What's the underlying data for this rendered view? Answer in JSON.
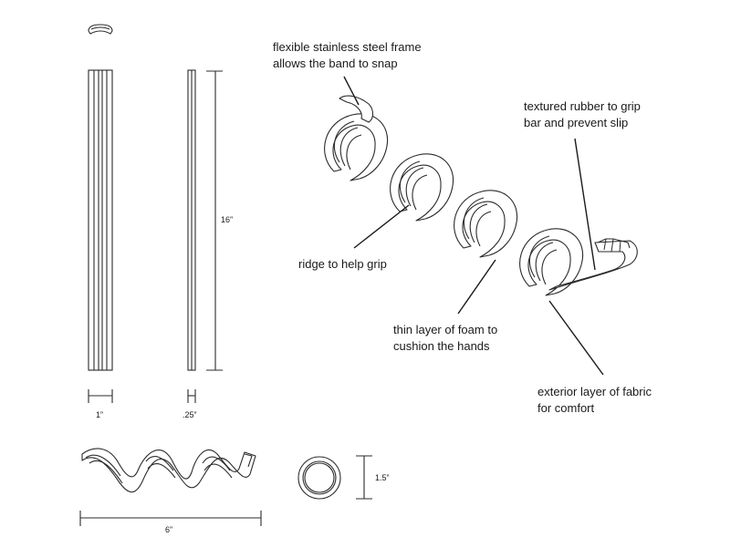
{
  "annotations": {
    "steel_frame": [
      "flexible stainless steel frame",
      "allows the band to snap"
    ],
    "textured_rubber": [
      "textured rubber to grip",
      "bar and prevent slip"
    ],
    "ridge": [
      "ridge to help grip"
    ],
    "foam": [
      "thin layer of foam to",
      "cushion the hands"
    ],
    "fabric": [
      "exterior layer of fabric",
      "for comfort"
    ]
  },
  "dimensions": {
    "length": "16”",
    "width": "1”",
    "thickness": ".25”",
    "coil_length": "6”",
    "coil_diameter": "1.5”"
  },
  "colors": {
    "line": "#2b2b2b",
    "fill": "#ffffff"
  }
}
